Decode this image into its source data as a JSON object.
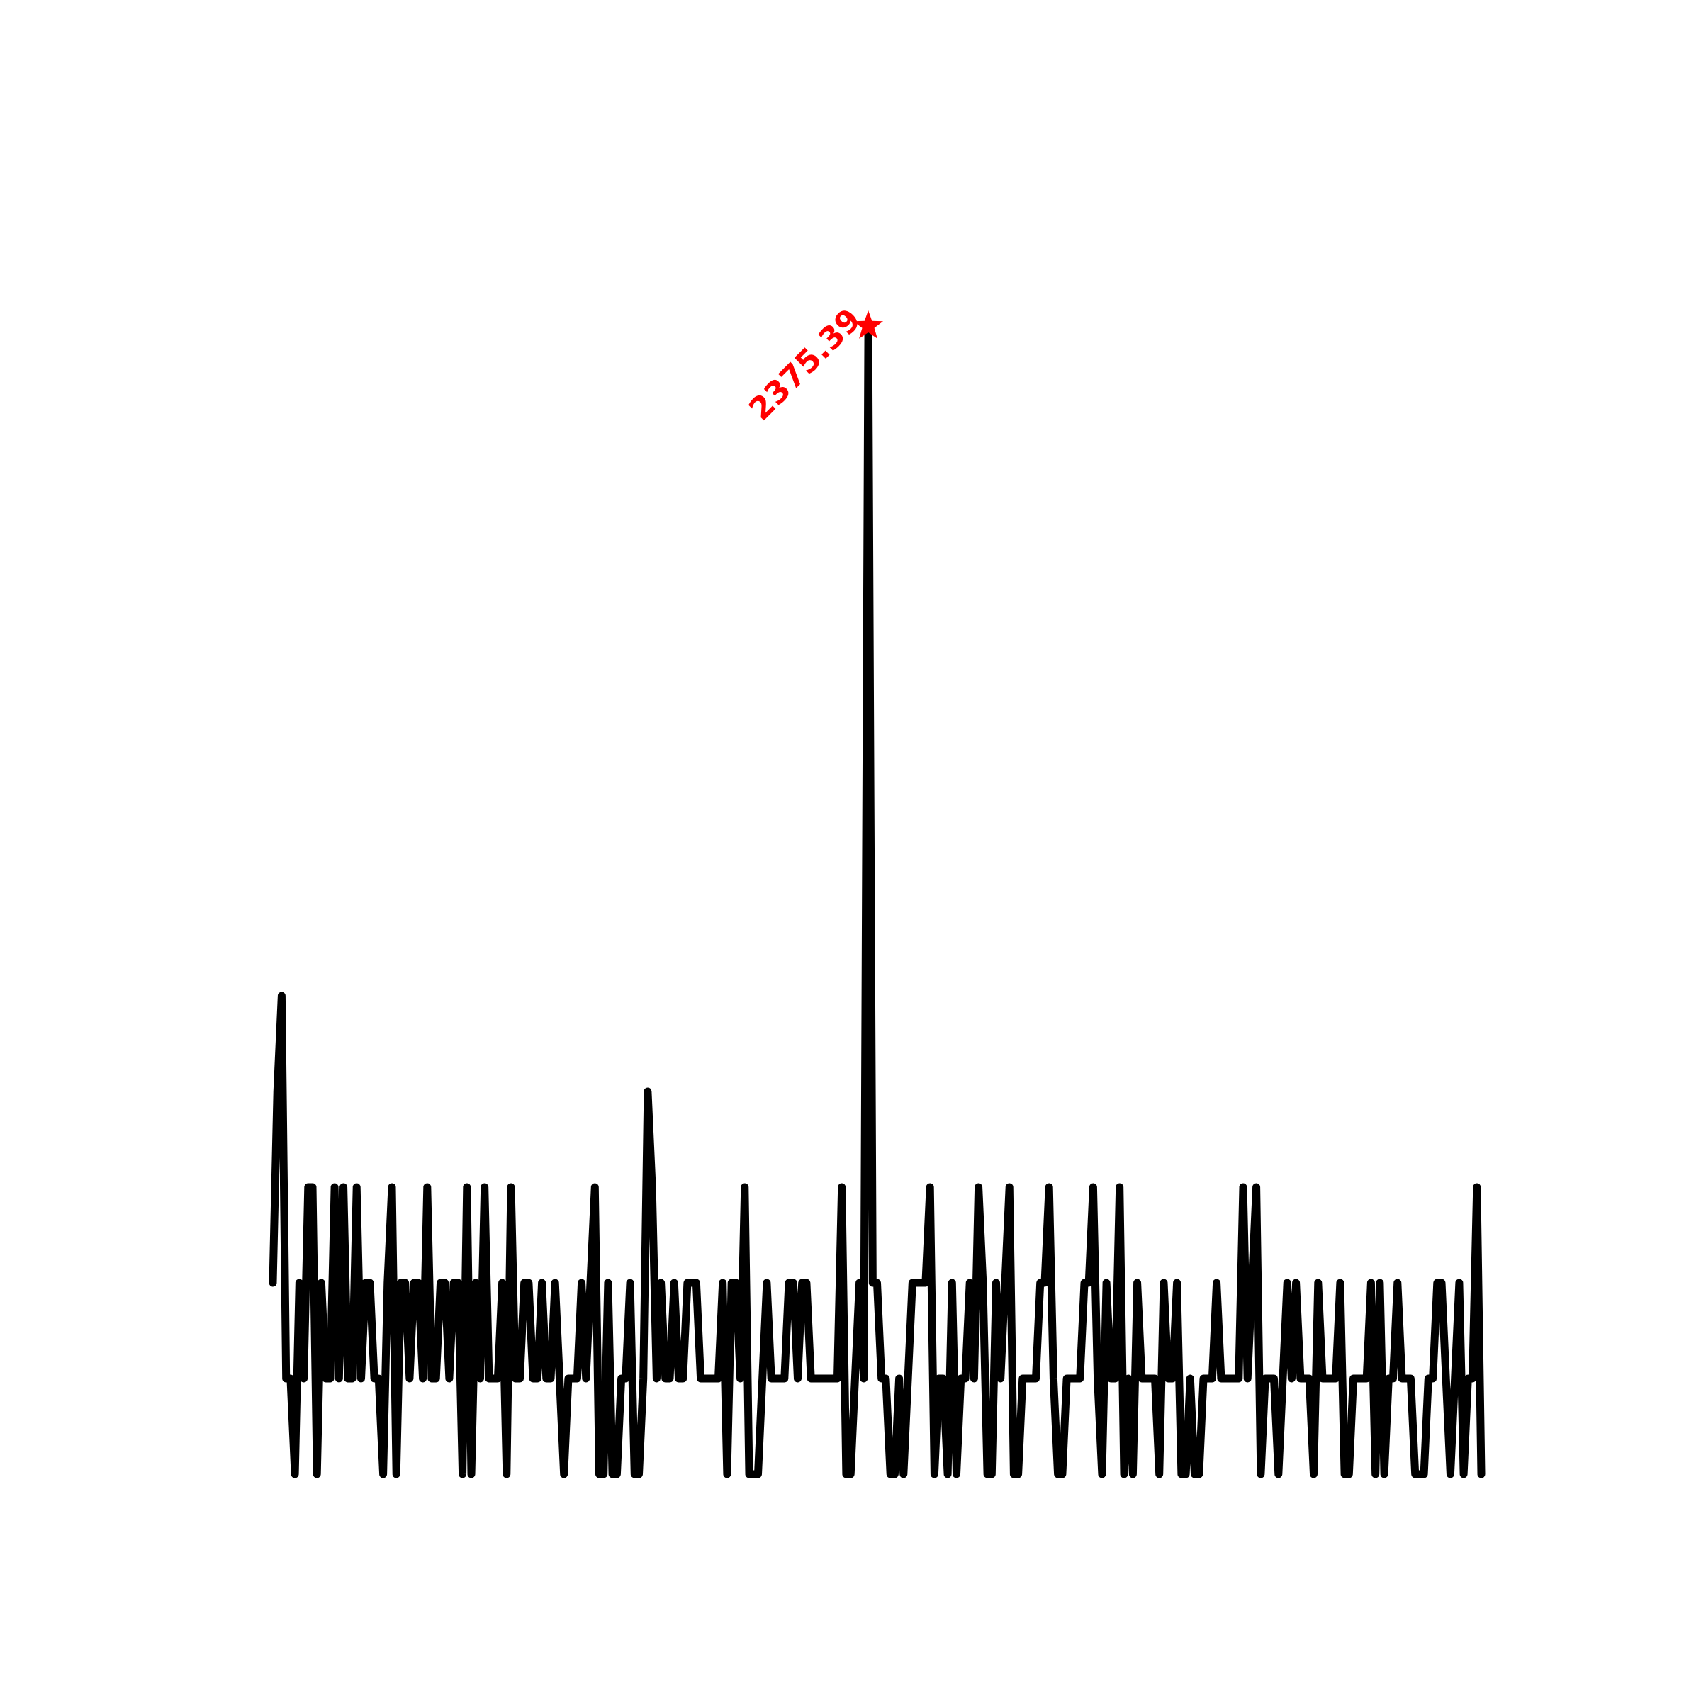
{
  "chart_data": {
    "type": "line",
    "title": "",
    "xlabel": "",
    "ylabel": "",
    "axes_visible": false,
    "grid": false,
    "line_color": "#000000",
    "peak_color": "#ff0000",
    "ylim": [
      0,
      12
    ],
    "peak": {
      "label": "2375.39",
      "marker": "star",
      "index": 135
    },
    "series": [
      {
        "values": [
          2,
          4,
          5,
          1,
          1,
          0,
          2,
          1,
          3,
          3,
          0,
          2,
          1,
          1,
          3,
          1,
          3,
          1,
          1,
          3,
          1,
          2,
          2,
          1,
          1,
          0,
          2,
          3,
          0,
          2,
          2,
          1,
          2,
          2,
          1,
          3,
          1,
          1,
          2,
          2,
          1,
          2,
          2,
          0,
          3,
          0,
          2,
          1,
          3,
          1,
          1,
          1,
          2,
          0,
          3,
          1,
          1,
          2,
          2,
          1,
          1,
          2,
          1,
          1,
          2,
          1,
          0,
          1,
          1,
          1,
          2,
          1,
          2,
          3,
          0,
          0,
          2,
          0,
          0,
          1,
          1,
          2,
          0,
          0,
          1,
          4,
          3,
          1,
          2,
          1,
          1,
          2,
          1,
          1,
          2,
          2,
          2,
          1,
          1,
          1,
          1,
          1,
          2,
          0,
          2,
          2,
          1,
          3,
          0,
          0,
          0,
          1,
          2,
          1,
          1,
          1,
          1,
          2,
          2,
          1,
          2,
          2,
          1,
          1,
          1,
          1,
          1,
          1,
          1,
          3,
          0,
          0,
          1,
          2,
          1,
          2,
          2,
          1,
          1,
          0,
          0,
          1,
          0,
          1,
          2,
          2,
          2,
          2,
          3,
          0,
          1,
          1,
          0,
          2,
          0,
          1,
          1,
          2,
          1,
          3,
          2,
          0,
          0,
          2,
          1,
          2,
          3,
          0,
          0,
          1,
          1,
          1,
          1,
          2,
          2,
          3,
          1,
          0,
          0,
          1,
          1,
          1,
          1,
          2,
          2,
          3,
          1,
          0,
          2,
          1,
          1,
          3,
          0,
          1,
          0,
          2,
          1,
          1,
          1,
          1,
          0,
          2,
          1,
          1,
          2,
          0,
          0,
          1,
          0,
          0,
          1,
          1,
          1,
          2,
          1,
          1,
          1,
          1,
          1,
          3,
          1,
          2,
          3,
          0,
          1,
          1,
          1,
          0,
          1,
          2,
          1,
          2,
          1,
          1,
          1,
          0,
          2,
          1,
          1,
          1,
          1,
          2,
          0,
          0,
          1,
          1,
          1,
          1,
          2,
          0,
          2,
          0,
          1,
          1,
          2,
          1,
          1,
          1,
          0,
          0,
          0,
          1,
          1,
          2,
          2,
          1,
          0,
          1,
          2,
          0,
          1,
          1,
          3,
          0
        ]
      }
    ]
  }
}
